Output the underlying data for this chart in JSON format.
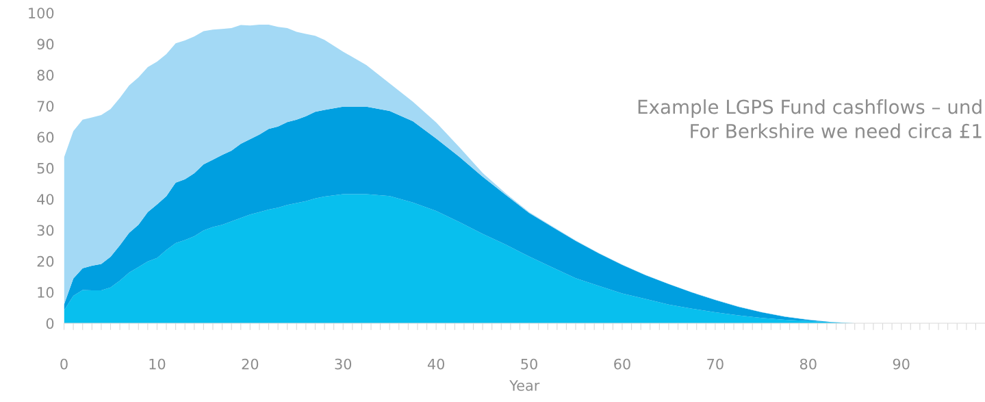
{
  "chart_data": {
    "type": "area",
    "stacked": true,
    "xlabel": "Year",
    "annotations": [
      "Example LGPS Fund cashflows – und\nFor Berkshire we need circa £1"
    ],
    "x": [
      0,
      1,
      2,
      3,
      4,
      5,
      6,
      7,
      8,
      9,
      10,
      11,
      12,
      13,
      14,
      15,
      16,
      17,
      18,
      19,
      20,
      21,
      22,
      23,
      24,
      25,
      26,
      27,
      28,
      30,
      32.5,
      35,
      37.5,
      40,
      42.5,
      45,
      47.5,
      50,
      52.5,
      55,
      57.5,
      60,
      62.5,
      65,
      67.5,
      70,
      72.5,
      75,
      77.5,
      80,
      82.5,
      85,
      98
    ],
    "series": [
      {
        "color": "#08bfee",
        "values": [
          4.1,
          8.8,
          10.7,
          10.6,
          10.6,
          11.5,
          13.7,
          16.3,
          18.1,
          19.9,
          21.0,
          23.6,
          25.8,
          26.8,
          28.0,
          29.9,
          31.0,
          31.7,
          32.8,
          33.9,
          35.0,
          35.8,
          36.6,
          37.2,
          38.1,
          38.7,
          39.3,
          40.2,
          40.8,
          41.6,
          41.6,
          41.0,
          38.9,
          36.2,
          32.6,
          28.8,
          25.3,
          21.5,
          18.0,
          14.5,
          12.0,
          9.6,
          7.8,
          6.0,
          4.7,
          3.5,
          2.5,
          1.7,
          1.1,
          0.7,
          0.3,
          0,
          0
        ]
      },
      {
        "color": "#009fe0",
        "values": [
          1.9,
          5.6,
          7.0,
          7.9,
          8.5,
          9.9,
          11.4,
          12.8,
          13.6,
          15.9,
          17.3,
          17.3,
          19.5,
          19.6,
          20.3,
          21.3,
          21.7,
          22.5,
          22.8,
          23.9,
          24.3,
          25.0,
          26.0,
          26.2,
          26.7,
          26.9,
          27.4,
          27.9,
          27.9,
          28.2,
          28.2,
          27.4,
          26.2,
          23.3,
          21.0,
          18.4,
          16.0,
          14.0,
          13.0,
          12.0,
          10.5,
          9.2,
          7.7,
          6.6,
          5.2,
          4.0,
          2.8,
          1.8,
          1.0,
          0.4,
          0.1,
          0,
          0
        ]
      },
      {
        "color": "#a3d9f5",
        "values": [
          47.4,
          47.5,
          47.9,
          47.8,
          48.0,
          47.6,
          47.5,
          47.5,
          47.5,
          46.7,
          46.0,
          45.8,
          44.9,
          44.7,
          44.1,
          42.9,
          41.9,
          40.6,
          39.5,
          38.3,
          36.6,
          35.4,
          33.6,
          32.1,
          30.3,
          28.3,
          26.5,
          24.5,
          22.6,
          17.7,
          13.4,
          8.9,
          6.3,
          5.2,
          3.1,
          1.2,
          0.5,
          0.3,
          0.2,
          0.2,
          0.1,
          0.1,
          0.1,
          0.1,
          0.1,
          0.1,
          0.1,
          0.1,
          0.1,
          0.1,
          0,
          0,
          0
        ]
      }
    ],
    "xlim": [
      0,
      99
    ],
    "ylim": [
      0,
      100
    ],
    "yticks": [
      0,
      10,
      20,
      30,
      40,
      50,
      60,
      70,
      80,
      90,
      100
    ],
    "xticks": [
      0,
      {
        "value": 1,
        "label": null
      },
      {
        "value": 2,
        "label": null
      },
      {
        "value": 3,
        "label": null
      },
      {
        "value": 4,
        "label": null
      },
      {
        "value": 5,
        "label": null
      },
      {
        "value": 6,
        "label": null
      },
      {
        "value": 7,
        "label": null
      },
      {
        "value": 8,
        "label": null
      },
      {
        "value": 9,
        "label": null
      },
      10,
      {
        "value": 11,
        "label": null
      },
      {
        "value": 12,
        "label": null
      },
      {
        "value": 13,
        "label": null
      },
      {
        "value": 14,
        "label": null
      },
      {
        "value": 15,
        "label": null
      },
      {
        "value": 16,
        "label": null
      },
      {
        "value": 17,
        "label": null
      },
      {
        "value": 18,
        "label": null
      },
      {
        "value": 19,
        "label": null
      },
      20,
      {
        "value": 21,
        "label": null
      },
      {
        "value": 22,
        "label": null
      },
      {
        "value": 23,
        "label": null
      },
      {
        "value": 24,
        "label": null
      },
      {
        "value": 25,
        "label": null
      },
      {
        "value": 26,
        "label": null
      },
      {
        "value": 27,
        "label": null
      },
      {
        "value": 28,
        "label": null
      },
      {
        "value": 29,
        "label": null
      },
      30,
      {
        "value": 31,
        "label": null
      },
      {
        "value": 32,
        "label": null
      },
      {
        "value": 33,
        "label": null
      },
      {
        "value": 34,
        "label": null
      },
      {
        "value": 35,
        "label": null
      },
      {
        "value": 36,
        "label": null
      },
      {
        "value": 37,
        "label": null
      },
      {
        "value": 38,
        "label": null
      },
      {
        "value": 39,
        "label": null
      },
      40,
      {
        "value": 41,
        "label": null
      },
      {
        "value": 42,
        "label": null
      },
      {
        "value": 43,
        "label": null
      },
      {
        "value": 44,
        "label": null
      },
      {
        "value": 45,
        "label": null
      },
      {
        "value": 46,
        "label": null
      },
      {
        "value": 47,
        "label": null
      },
      {
        "value": 48,
        "label": null
      },
      {
        "value": 49,
        "label": null
      },
      50,
      {
        "value": 51,
        "label": null
      },
      {
        "value": 52,
        "label": null
      },
      {
        "value": 53,
        "label": null
      },
      {
        "value": 54,
        "label": null
      },
      {
        "value": 55,
        "label": null
      },
      {
        "value": 56,
        "label": null
      },
      {
        "value": 57,
        "label": null
      },
      {
        "value": 58,
        "label": null
      },
      {
        "value": 59,
        "label": null
      },
      60,
      {
        "value": 61,
        "label": null
      },
      {
        "value": 62,
        "label": null
      },
      {
        "value": 63,
        "label": null
      },
      {
        "value": 64,
        "label": null
      },
      {
        "value": 65,
        "label": null
      },
      {
        "value": 66,
        "label": null
      },
      {
        "value": 67,
        "label": null
      },
      {
        "value": 68,
        "label": null
      },
      {
        "value": 69,
        "label": null
      },
      70,
      {
        "value": 71,
        "label": null
      },
      {
        "value": 72,
        "label": null
      },
      {
        "value": 73,
        "label": null
      },
      {
        "value": 74,
        "label": null
      },
      {
        "value": 75,
        "label": null
      },
      {
        "value": 76,
        "label": null
      },
      {
        "value": 77,
        "label": null
      },
      {
        "value": 78,
        "label": null
      },
      {
        "value": 79,
        "label": null
      },
      80,
      {
        "value": 81,
        "label": null
      },
      {
        "value": 82,
        "label": null
      },
      {
        "value": 83,
        "label": null
      },
      {
        "value": 84,
        "label": null
      },
      {
        "value": 85,
        "label": null
      },
      {
        "value": 86,
        "label": null
      },
      {
        "value": 87,
        "label": null
      },
      {
        "value": 88,
        "label": null
      },
      {
        "value": 89,
        "label": null
      },
      90,
      {
        "value": 91,
        "label": null
      },
      {
        "value": 92,
        "label": null
      },
      {
        "value": 93,
        "label": null
      },
      {
        "value": 94,
        "label": null
      },
      {
        "value": 95,
        "label": null
      },
      {
        "value": 96,
        "label": null
      },
      {
        "value": 97,
        "label": null
      },
      {
        "value": 98,
        "label": null
      }
    ]
  }
}
